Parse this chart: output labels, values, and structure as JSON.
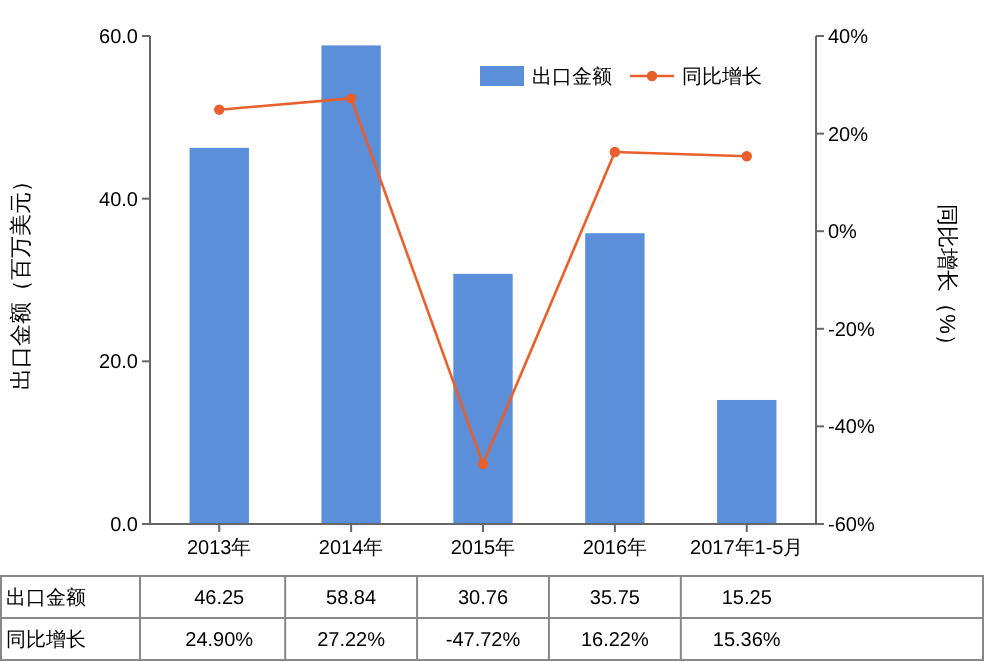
{
  "chart_data": {
    "type": "bar",
    "categories": [
      "2013年",
      "2014年",
      "2015年",
      "2016年",
      "2017年1-5月"
    ],
    "series": [
      {
        "name": "出口金额",
        "color": "#5b8fd9",
        "values": [
          46.25,
          58.84,
          30.76,
          35.75,
          15.25
        ],
        "value_labels": [
          "46.25",
          "58.84",
          "30.76",
          "35.75",
          "15.25"
        ]
      },
      {
        "name": "同比增长",
        "type": "line",
        "axis": "y2",
        "color": "#e8602c",
        "marker": "circle",
        "values": [
          24.9,
          27.22,
          -47.72,
          16.22,
          15.36
        ],
        "value_labels": [
          "24.90%",
          "27.22%",
          "-47.72%",
          "16.22%",
          "15.36%"
        ]
      }
    ],
    "ylabel": "出口金额（百万美元）",
    "y2label": "同比增长（%）",
    "ylim": [
      0,
      60
    ],
    "yticks": [
      {
        "value": 0,
        "label": "0.0"
      },
      {
        "value": 20,
        "label": "20.0"
      },
      {
        "value": 40,
        "label": "40.0"
      },
      {
        "value": 60,
        "label": "60.0"
      }
    ],
    "y2lim": [
      -60,
      40
    ],
    "y2ticks": [
      {
        "value": -60,
        "label": "-60%"
      },
      {
        "value": -40,
        "label": "-40%"
      },
      {
        "value": -20,
        "label": "-20%"
      },
      {
        "value": 0,
        "label": "0%"
      },
      {
        "value": 20,
        "label": "20%"
      },
      {
        "value": 40,
        "label": "40%"
      }
    ],
    "legend": "top right",
    "grid": false
  }
}
